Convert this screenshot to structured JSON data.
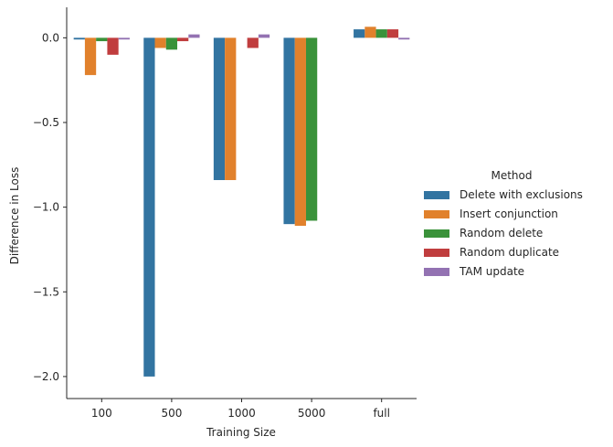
{
  "chart_data": {
    "type": "bar",
    "title": "",
    "xlabel": "Training Size",
    "ylabel": "Difference in Loss",
    "categories": [
      "100",
      "500",
      "1000",
      "5000",
      "full"
    ],
    "ylim": [
      -2.13,
      0.18
    ],
    "yticks": [
      0.0,
      -0.5,
      -1.0,
      -1.5,
      -2.0
    ],
    "ytick_labels": [
      "0.0",
      "−0.5",
      "−1.0",
      "−1.5",
      "−2.0"
    ],
    "grid": false,
    "legend": {
      "title": "Method",
      "placement": "right"
    },
    "series": [
      {
        "name": "Delete with exclusions",
        "color": "#3274a1",
        "values": [
          -0.01,
          -2.0,
          -0.84,
          -1.1,
          0.05
        ]
      },
      {
        "name": "Insert conjunction",
        "color": "#e1812c",
        "values": [
          -0.22,
          -0.06,
          -0.84,
          -1.11,
          0.065
        ]
      },
      {
        "name": "Random delete",
        "color": "#3a923a",
        "values": [
          -0.02,
          -0.07,
          0.0,
          -1.08,
          0.05
        ]
      },
      {
        "name": "Random duplicate",
        "color": "#c03d3e",
        "values": [
          -0.1,
          -0.02,
          -0.06,
          0.0,
          0.05
        ]
      },
      {
        "name": "TAM update",
        "color": "#9372b2",
        "values": [
          -0.01,
          0.02,
          0.02,
          0.0,
          -0.01
        ]
      }
    ]
  }
}
